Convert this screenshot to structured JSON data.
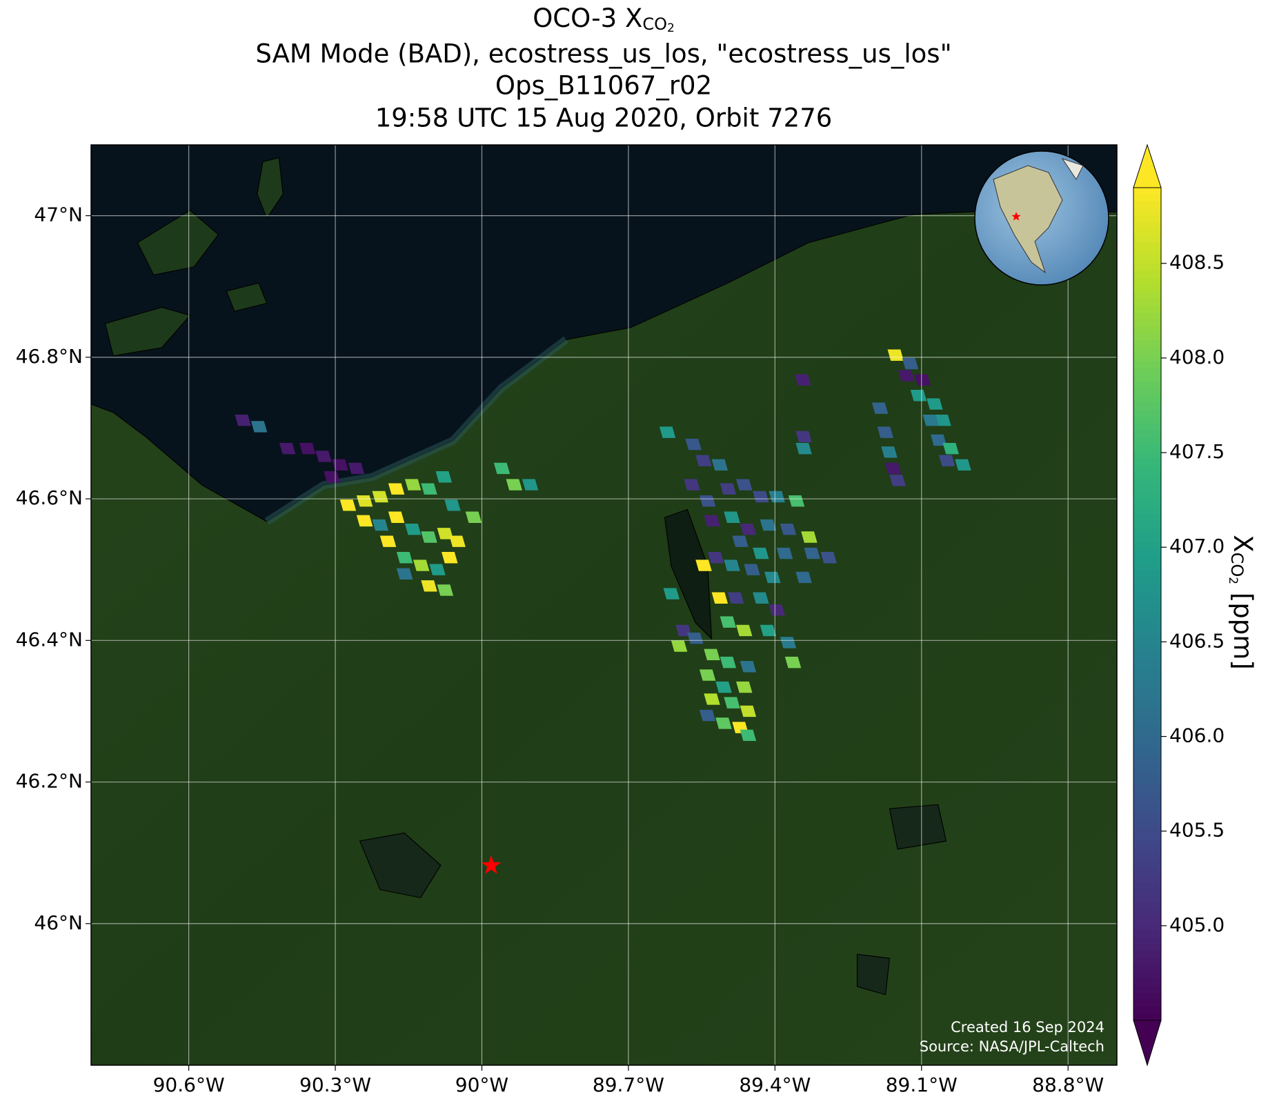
{
  "chart_data": {
    "type": "footprint-map",
    "title": {
      "prefix": "OCO-3 X",
      "subscript": "CO",
      "subsubscript": "2",
      "lines": [
        "SAM Mode (BAD), ecostress_us_los, \"ecostress_us_los\"",
        "Ops_B11067_r02",
        "19:58 UTC 15 Aug 2020, Orbit 7276"
      ]
    },
    "xlim": [
      -90.8,
      -88.7
    ],
    "ylim": [
      45.8,
      47.1
    ],
    "xticks": [
      {
        "value": -90.6,
        "label": "90.6°W"
      },
      {
        "value": -90.3,
        "label": "90.3°W"
      },
      {
        "value": -90.0,
        "label": "90°W"
      },
      {
        "value": -89.7,
        "label": "89.7°W"
      },
      {
        "value": -89.4,
        "label": "89.4°W"
      },
      {
        "value": -89.1,
        "label": "89.1°W"
      },
      {
        "value": -88.8,
        "label": "88.8°W"
      }
    ],
    "yticks": [
      {
        "value": 47.0,
        "label": "47°N"
      },
      {
        "value": 46.8,
        "label": "46.8°N"
      },
      {
        "value": 46.6,
        "label": "46.6°N"
      },
      {
        "value": 46.4,
        "label": "46.4°N"
      },
      {
        "value": 46.2,
        "label": "46.2°N"
      },
      {
        "value": 46.0,
        "label": "46°N"
      }
    ],
    "grid": true,
    "colorbar": {
      "label": {
        "prefix": "X",
        "subscript": "CO",
        "subsubscript": "2",
        "suffix": " [ppm]"
      },
      "clim": [
        404.5,
        408.9
      ],
      "ticks": [
        {
          "value": 405,
          "label": "405.0"
        },
        405.5,
        {
          "value": 406,
          "label": "406.0"
        },
        406.5,
        {
          "value": 407,
          "label": "407.0"
        },
        407.5,
        {
          "value": 408,
          "label": "408.0"
        },
        408.5
      ],
      "colormap": "viridis",
      "extend": "both"
    },
    "target": {
      "lon": -89.981,
      "lat": 46.082,
      "color": "#ff0000"
    },
    "credits": [
      "Created 16 Sep 2024",
      "Source: NASA/JPL-Caltech"
    ],
    "cells": {
      "lon": [
        -90.489,
        -90.456,
        -90.398,
        -90.357,
        -90.324,
        -90.29,
        -90.257,
        -90.307,
        -90.274,
        -90.24,
        -90.208,
        -90.175,
        -90.141,
        -90.108,
        -90.078,
        -90.06,
        -90.017,
        -90.24,
        -90.208,
        -90.175,
        -90.141,
        -90.108,
        -90.075,
        -90.05,
        -90.192,
        -90.158,
        -90.124,
        -90.091,
        -90.066,
        -90.158,
        -90.108,
        -90.075,
        -89.959,
        -89.934,
        -89.901,
        -89.62,
        -89.567,
        -89.546,
        -89.513,
        -89.57,
        -89.538,
        -89.496,
        -89.463,
        -89.429,
        -89.396,
        -89.356,
        -89.529,
        -89.488,
        -89.455,
        -89.414,
        -89.373,
        -89.33,
        -89.471,
        -89.429,
        -89.38,
        -89.324,
        -89.29,
        -89.546,
        -89.521,
        -89.488,
        -89.447,
        -89.405,
        -89.341,
        -89.513,
        -89.48,
        -89.429,
        -89.396,
        -89.496,
        -89.463,
        -89.414,
        -89.373,
        -89.363,
        -89.612,
        -89.587,
        -89.563,
        -89.596,
        -89.529,
        -89.496,
        -89.455,
        -89.538,
        -89.505,
        -89.463,
        -89.529,
        -89.488,
        -89.455,
        -89.538,
        -89.505,
        -89.471,
        -89.455,
        -89.153,
        -89.123,
        -89.131,
        -89.098,
        -89.106,
        -89.073,
        -89.056,
        -89.081,
        -89.065,
        -89.04,
        -89.048,
        -89.015,
        -89.185,
        -89.174,
        -89.166,
        -89.158,
        -89.149,
        -89.343,
        -89.341,
        -89.341
      ],
      "lat": [
        46.711,
        46.702,
        46.671,
        46.671,
        46.66,
        46.648,
        46.643,
        46.631,
        46.591,
        46.597,
        46.603,
        46.614,
        46.62,
        46.614,
        46.631,
        46.591,
        46.574,
        46.569,
        46.563,
        46.574,
        46.557,
        46.546,
        46.551,
        46.54,
        46.54,
        46.517,
        46.506,
        46.5,
        46.517,
        46.494,
        46.477,
        46.471,
        46.643,
        46.62,
        46.62,
        46.694,
        46.677,
        46.654,
        46.648,
        46.62,
        46.597,
        46.614,
        46.62,
        46.603,
        46.603,
        46.597,
        46.569,
        46.574,
        46.557,
        46.563,
        46.557,
        46.546,
        46.54,
        46.523,
        46.523,
        46.523,
        46.517,
        46.506,
        46.517,
        46.506,
        46.5,
        46.489,
        46.489,
        46.46,
        46.46,
        46.46,
        46.443,
        46.426,
        46.414,
        46.414,
        46.397,
        46.369,
        46.466,
        46.414,
        46.403,
        46.392,
        46.38,
        46.369,
        46.363,
        46.351,
        46.334,
        46.334,
        46.317,
        46.312,
        46.3,
        46.294,
        46.283,
        46.277,
        46.266,
        46.803,
        46.791,
        46.774,
        46.768,
        46.746,
        46.734,
        46.711,
        46.711,
        46.683,
        46.671,
        46.654,
        46.648,
        46.728,
        46.694,
        46.666,
        46.643,
        46.626,
        46.768,
        46.688,
        46.671
      ],
      "values": [
        404.9,
        406.2,
        404.8,
        404.7,
        404.8,
        404.7,
        404.8,
        404.7,
        408.9,
        408.7,
        408.6,
        408.9,
        408.2,
        407.5,
        407.0,
        406.8,
        408.0,
        408.9,
        406.5,
        408.9,
        406.9,
        407.7,
        408.6,
        408.8,
        408.9,
        407.5,
        408.3,
        406.9,
        408.9,
        406.2,
        408.8,
        408.0,
        407.5,
        408.0,
        406.8,
        406.9,
        405.7,
        405.3,
        406.2,
        405.2,
        405.6,
        405.3,
        405.6,
        405.5,
        406.4,
        407.6,
        404.9,
        406.8,
        405.0,
        406.2,
        405.7,
        408.3,
        405.8,
        406.8,
        406.0,
        405.9,
        405.6,
        408.9,
        405.2,
        406.5,
        405.8,
        406.6,
        406.0,
        408.9,
        405.3,
        406.6,
        405.0,
        407.6,
        408.3,
        407.0,
        406.3,
        408.0,
        406.9,
        405.2,
        405.8,
        408.2,
        408.0,
        407.5,
        406.2,
        408.0,
        407.0,
        408.2,
        408.4,
        407.6,
        408.5,
        405.8,
        407.8,
        408.9,
        407.5,
        408.8,
        405.8,
        404.8,
        404.7,
        406.9,
        406.9,
        406.8,
        406.3,
        406.0,
        407.3,
        405.5,
        406.8,
        405.9,
        405.8,
        406.4,
        404.8,
        405.3,
        404.9,
        405.2,
        406.6
      ]
    }
  }
}
